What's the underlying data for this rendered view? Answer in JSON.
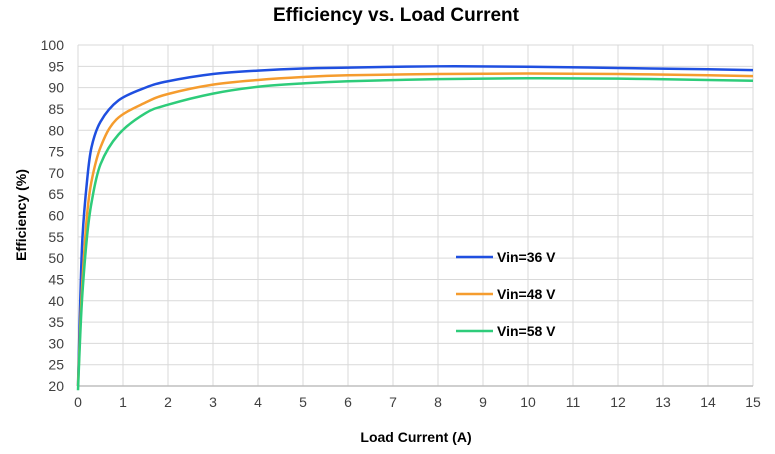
{
  "chart_data": {
    "type": "line",
    "title": "Efficiency vs. Load Current",
    "xlabel": "Load Current (A)",
    "ylabel": "Efficiency (%)",
    "xlim": [
      0,
      15
    ],
    "ylim": [
      20,
      100
    ],
    "xticks": [
      0,
      1,
      2,
      3,
      4,
      5,
      6,
      7,
      8,
      9,
      10,
      11,
      12,
      13,
      14,
      15
    ],
    "yticks": [
      20,
      25,
      30,
      35,
      40,
      45,
      50,
      55,
      60,
      65,
      70,
      75,
      80,
      85,
      90,
      95,
      100
    ],
    "grid": true,
    "legend_position": "center-right inside plot",
    "series": [
      {
        "name": "Vin=36 V",
        "color": "#1f4fe0",
        "x": [
          0,
          0.05,
          0.1,
          0.2,
          0.3,
          0.5,
          0.9,
          1.5,
          2,
          3,
          4,
          5,
          6,
          8,
          10,
          12,
          14,
          15
        ],
        "y": [
          20,
          40,
          55,
          68,
          76,
          82,
          87,
          90,
          91.5,
          93.2,
          94,
          94.5,
          94.7,
          95,
          94.9,
          94.6,
          94.3,
          94.1
        ]
      },
      {
        "name": "Vin=48 V",
        "color": "#f59c2e",
        "x": [
          0,
          0.05,
          0.1,
          0.2,
          0.3,
          0.5,
          0.85,
          1.5,
          2,
          3,
          4,
          5,
          6,
          8,
          10,
          12,
          14,
          15
        ],
        "y": [
          20,
          34,
          45,
          60,
          68,
          76,
          82.5,
          86.5,
          88.5,
          90.7,
          91.8,
          92.5,
          92.9,
          93.2,
          93.3,
          93.2,
          92.9,
          92.7
        ]
      },
      {
        "name": "Vin=58 V",
        "color": "#2ecc7a",
        "x": [
          0,
          0.05,
          0.1,
          0.2,
          0.3,
          0.5,
          0.9,
          1.5,
          2,
          3,
          4,
          5,
          6,
          8,
          10,
          12,
          14,
          15
        ],
        "y": [
          19,
          32,
          42,
          55,
          63,
          72,
          79,
          84,
          86,
          88.6,
          90.2,
          91,
          91.5,
          92,
          92.2,
          92.1,
          91.8,
          91.6
        ]
      }
    ]
  }
}
